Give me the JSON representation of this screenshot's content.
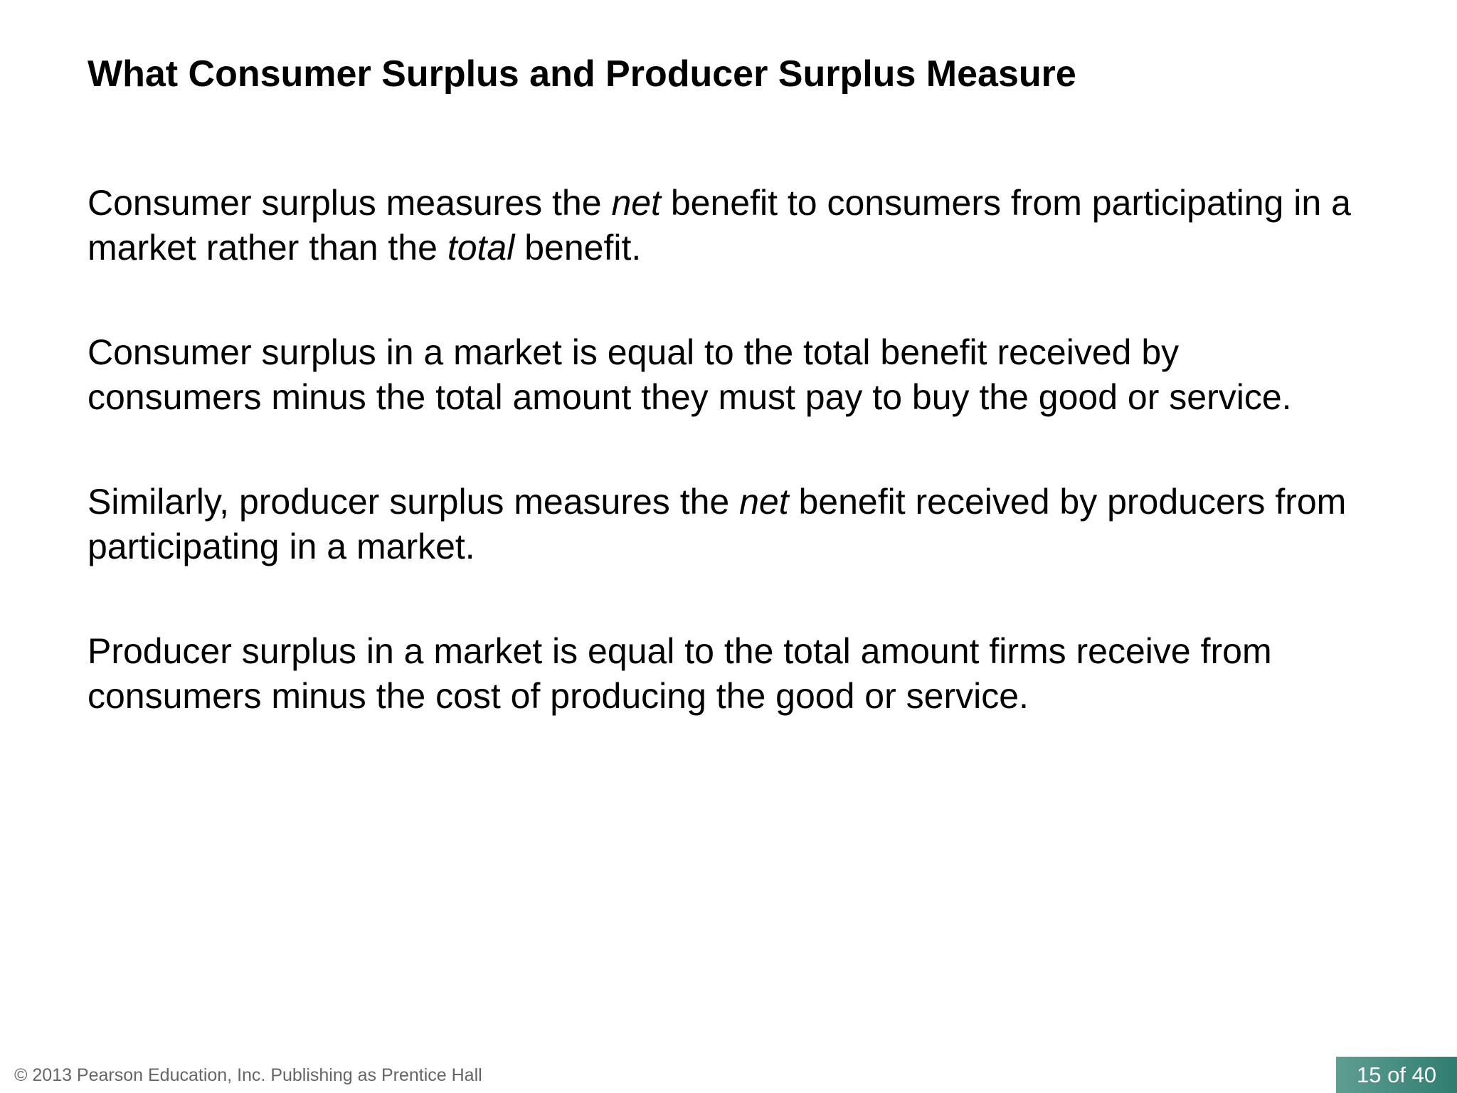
{
  "header": {
    "title": "What Consumer Surplus and Producer Surplus Measure"
  },
  "body": {
    "paragraphs": [
      [
        {
          "text": "Consumer surplus measures the "
        },
        {
          "text": "net",
          "italic": true
        },
        {
          "text": " benefit to consumers from participating in a market rather than the "
        },
        {
          "text": "total",
          "italic": true
        },
        {
          "text": " benefit."
        }
      ],
      [
        {
          "text": "Consumer surplus in a market is equal to the total benefit received by consumers minus the total amount they must pay to buy the good or service."
        }
      ],
      [
        {
          "text": "Similarly, producer surplus measures the "
        },
        {
          "text": "net",
          "italic": true
        },
        {
          "text": " benefit received by producers from participating in a market."
        }
      ],
      [
        {
          "text": "Producer surplus in a market is equal to the total amount firms receive from consumers minus the cost of producing the good or service."
        }
      ]
    ]
  },
  "footer": {
    "copyright": "© 2013 Pearson Education, Inc. Publishing as Prentice Hall",
    "page": "15 of 40"
  }
}
